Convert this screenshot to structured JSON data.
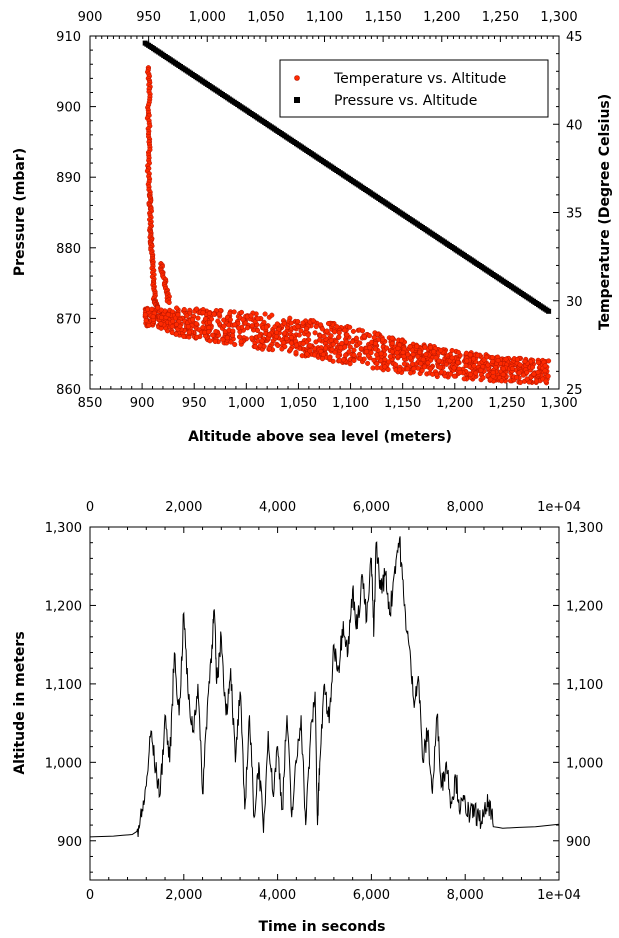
{
  "chart_data": [
    {
      "type": "scatter",
      "xlabel": "Altitude above sea level (meters)",
      "ylabel": "Pressure (mbar)",
      "y2label": "Temperature (Degree Celsius)",
      "xlim": [
        850,
        1300
      ],
      "x_top_lim": [
        900,
        1300
      ],
      "ylim": [
        860,
        910
      ],
      "y2lim": [
        25,
        45
      ],
      "x_ticks": [
        850,
        900,
        950,
        1000,
        1050,
        1100,
        1150,
        1200,
        1250,
        1300
      ],
      "x_tick_labels": [
        "850",
        "900",
        "950",
        "1,000",
        "1,050",
        "1,100",
        "1,150",
        "1,200",
        "1,250",
        "1,300"
      ],
      "x_top_ticks": [
        900,
        950,
        1000,
        1050,
        1100,
        1150,
        1200,
        1250,
        1300
      ],
      "x_top_tick_labels": [
        "900",
        "950",
        "1,000",
        "1,050",
        "1,100",
        "1,150",
        "1,200",
        "1,250",
        "1,300"
      ],
      "y_ticks": [
        860,
        870,
        880,
        890,
        900,
        910
      ],
      "y_tick_labels": [
        "860",
        "870",
        "880",
        "890",
        "900",
        "910"
      ],
      "y2_ticks": [
        25,
        30,
        35,
        40,
        45
      ],
      "y2_tick_labels": [
        "25",
        "30",
        "35",
        "40",
        "45"
      ],
      "legend_position": "top-right",
      "series": [
        {
          "name": "Temperature vs. Altitude",
          "axis": "y2",
          "marker": "circle",
          "color": "#ff2a00",
          "edge_color": "#b31400",
          "band": [
            {
              "x": 903,
              "temp_low": 28.6,
              "temp_high": 29.6
            },
            {
              "x": 950,
              "temp_low": 27.8,
              "temp_high": 29.6
            },
            {
              "x": 1000,
              "temp_low": 27.4,
              "temp_high": 29.4
            },
            {
              "x": 1050,
              "temp_low": 26.9,
              "temp_high": 29.0
            },
            {
              "x": 1100,
              "temp_low": 26.4,
              "temp_high": 28.6
            },
            {
              "x": 1150,
              "temp_low": 25.9,
              "temp_high": 27.8
            },
            {
              "x": 1200,
              "temp_low": 25.6,
              "temp_high": 27.2
            },
            {
              "x": 1250,
              "temp_low": 25.4,
              "temp_high": 26.8
            },
            {
              "x": 1290,
              "temp_low": 25.3,
              "temp_high": 26.6
            }
          ],
          "spike": [
            {
              "x": 906,
              "temp": 43.2
            },
            {
              "x": 907,
              "temp": 42.0
            },
            {
              "x": 906,
              "temp": 40.5
            },
            {
              "x": 907,
              "temp": 39.0
            },
            {
              "x": 906,
              "temp": 37.5
            },
            {
              "x": 907,
              "temp": 36.0
            },
            {
              "x": 908,
              "temp": 35.2
            },
            {
              "x": 908,
              "temp": 34.0
            },
            {
              "x": 909,
              "temp": 33.2
            },
            {
              "x": 910,
              "temp": 32.2
            },
            {
              "x": 911,
              "temp": 31.0
            },
            {
              "x": 912,
              "temp": 30.0
            },
            {
              "x": 915,
              "temp": 29.6
            }
          ],
          "bump": [
            {
              "x": 918,
              "temp": 32.1
            },
            {
              "x": 920,
              "temp": 31.6
            },
            {
              "x": 922,
              "temp": 31.0
            },
            {
              "x": 924,
              "temp": 30.4
            },
            {
              "x": 926,
              "temp": 29.9
            }
          ]
        },
        {
          "name": "Pressure vs. Altitude",
          "axis": "y",
          "marker": "square",
          "color": "#000000",
          "points": [
            {
              "x": 903,
              "pressure": 909.0
            },
            {
              "x": 1290,
              "pressure": 871.0
            }
          ]
        }
      ]
    },
    {
      "type": "line",
      "xlabel": "Time in seconds",
      "ylabel": "Altitude in meters",
      "xlim": [
        0,
        10000
      ],
      "ylim": [
        850,
        1300
      ],
      "x_ticks": [
        0,
        2000,
        4000,
        6000,
        8000,
        10000
      ],
      "x_tick_labels": [
        "0",
        "2,000",
        "4,000",
        "6,000",
        "8,000",
        "1e+04"
      ],
      "y_ticks": [
        900,
        1000,
        1100,
        1200,
        1300
      ],
      "y_tick_labels": [
        "900",
        "1,000",
        "1,100",
        "1,200",
        "1,300"
      ],
      "color": "#000000",
      "series": [
        {
          "points": [
            [
              0,
              905
            ],
            [
              500,
              906
            ],
            [
              900,
              908
            ],
            [
              1000,
              912
            ],
            [
              1100,
              930
            ],
            [
              1200,
              970
            ],
            [
              1300,
              1040
            ],
            [
              1400,
              990
            ],
            [
              1500,
              960
            ],
            [
              1600,
              1060
            ],
            [
              1700,
              1000
            ],
            [
              1800,
              1140
            ],
            [
              1900,
              1060
            ],
            [
              2000,
              1190
            ],
            [
              2100,
              1080
            ],
            [
              2200,
              1040
            ],
            [
              2300,
              1100
            ],
            [
              2400,
              960
            ],
            [
              2500,
              1070
            ],
            [
              2600,
              1150
            ],
            [
              2650,
              1195
            ],
            [
              2700,
              1100
            ],
            [
              2800,
              1160
            ],
            [
              2900,
              1060
            ],
            [
              3000,
              1120
            ],
            [
              3100,
              1000
            ],
            [
              3200,
              1090
            ],
            [
              3300,
              940
            ],
            [
              3400,
              1060
            ],
            [
              3500,
              930
            ],
            [
              3600,
              1000
            ],
            [
              3700,
              910
            ],
            [
              3800,
              1040
            ],
            [
              3900,
              960
            ],
            [
              4000,
              1020
            ],
            [
              4100,
              940
            ],
            [
              4200,
              1060
            ],
            [
              4300,
              930
            ],
            [
              4400,
              1000
            ],
            [
              4500,
              1060
            ],
            [
              4600,
              920
            ],
            [
              4700,
              1030
            ],
            [
              4800,
              1090
            ],
            [
              4850,
              920
            ],
            [
              4900,
              1000
            ],
            [
              5000,
              1100
            ],
            [
              5100,
              1050
            ],
            [
              5200,
              1150
            ],
            [
              5300,
              1120
            ],
            [
              5400,
              1180
            ],
            [
              5500,
              1140
            ],
            [
              5600,
              1220
            ],
            [
              5700,
              1170
            ],
            [
              5800,
              1240
            ],
            [
              5900,
              1180
            ],
            [
              6000,
              1260
            ],
            [
              6050,
              1160
            ],
            [
              6100,
              1280
            ],
            [
              6200,
              1220
            ],
            [
              6300,
              1240
            ],
            [
              6400,
              1190
            ],
            [
              6500,
              1250
            ],
            [
              6600,
              1285
            ],
            [
              6700,
              1200
            ],
            [
              6800,
              1150
            ],
            [
              6900,
              1080
            ],
            [
              7000,
              1110
            ],
            [
              7100,
              1000
            ],
            [
              7200,
              1040
            ],
            [
              7300,
              960
            ],
            [
              7400,
              1060
            ],
            [
              7500,
              970
            ],
            [
              7600,
              1000
            ],
            [
              7700,
              950
            ],
            [
              7800,
              980
            ],
            [
              7900,
              940
            ],
            [
              8000,
              950
            ],
            [
              8100,
              930
            ],
            [
              8200,
              940
            ],
            [
              8300,
              925
            ],
            [
              8400,
              930
            ],
            [
              8500,
              950
            ],
            [
              8600,
              918
            ],
            [
              8800,
              916
            ],
            [
              9500,
              918
            ],
            [
              10000,
              921
            ]
          ]
        }
      ]
    }
  ]
}
